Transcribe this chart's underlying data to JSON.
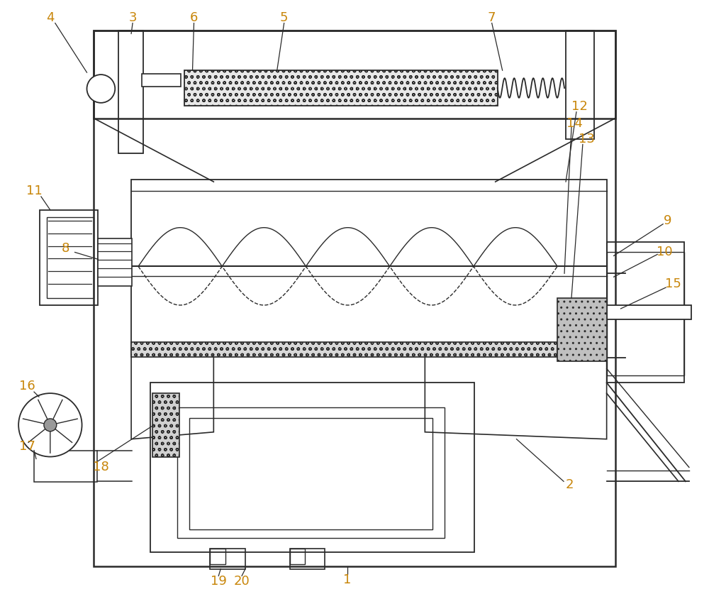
{
  "bg_color": "#ffffff",
  "line_color": "#2a2a2a",
  "label_color": "#c8860a",
  "fig_width": 10.0,
  "fig_height": 8.44
}
